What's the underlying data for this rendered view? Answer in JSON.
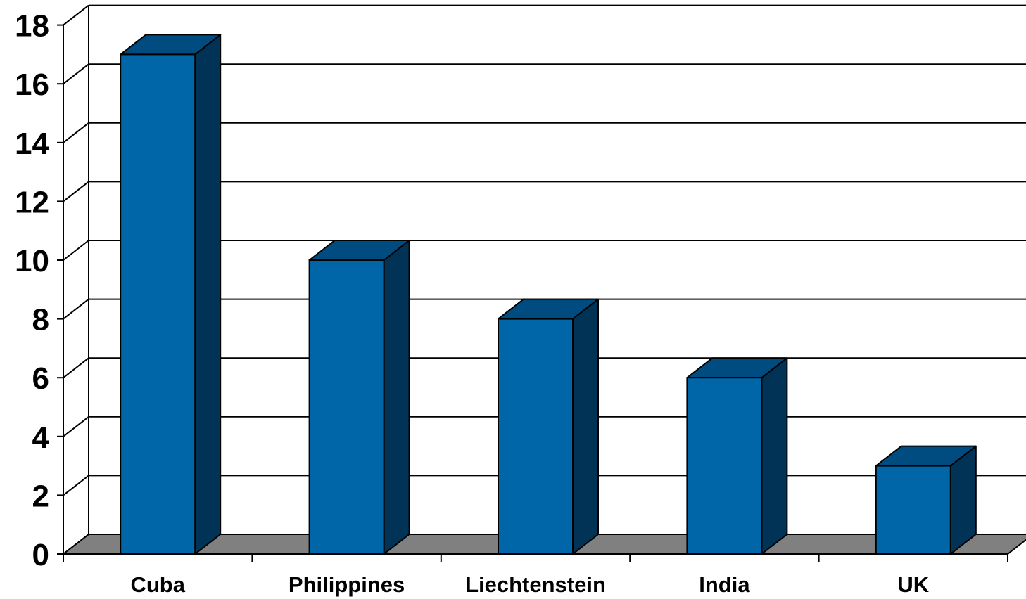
{
  "chart_data": {
    "type": "bar",
    "three_d": true,
    "categories": [
      "Cuba",
      "Philippines",
      "Liechtenstein",
      "India",
      "UK"
    ],
    "values": [
      17,
      10,
      8,
      6,
      3
    ],
    "ylim": [
      0,
      18
    ],
    "yticks": [
      "0",
      "2",
      "4",
      "6",
      "8",
      "10",
      "12",
      "14",
      "16",
      "18"
    ],
    "grid": true,
    "legend": "none",
    "colors": {
      "bar_front": "#0066A8",
      "bar_side": "#003355",
      "bar_top": "#004C80",
      "floor": "#808080",
      "gridline": "#000000"
    }
  }
}
